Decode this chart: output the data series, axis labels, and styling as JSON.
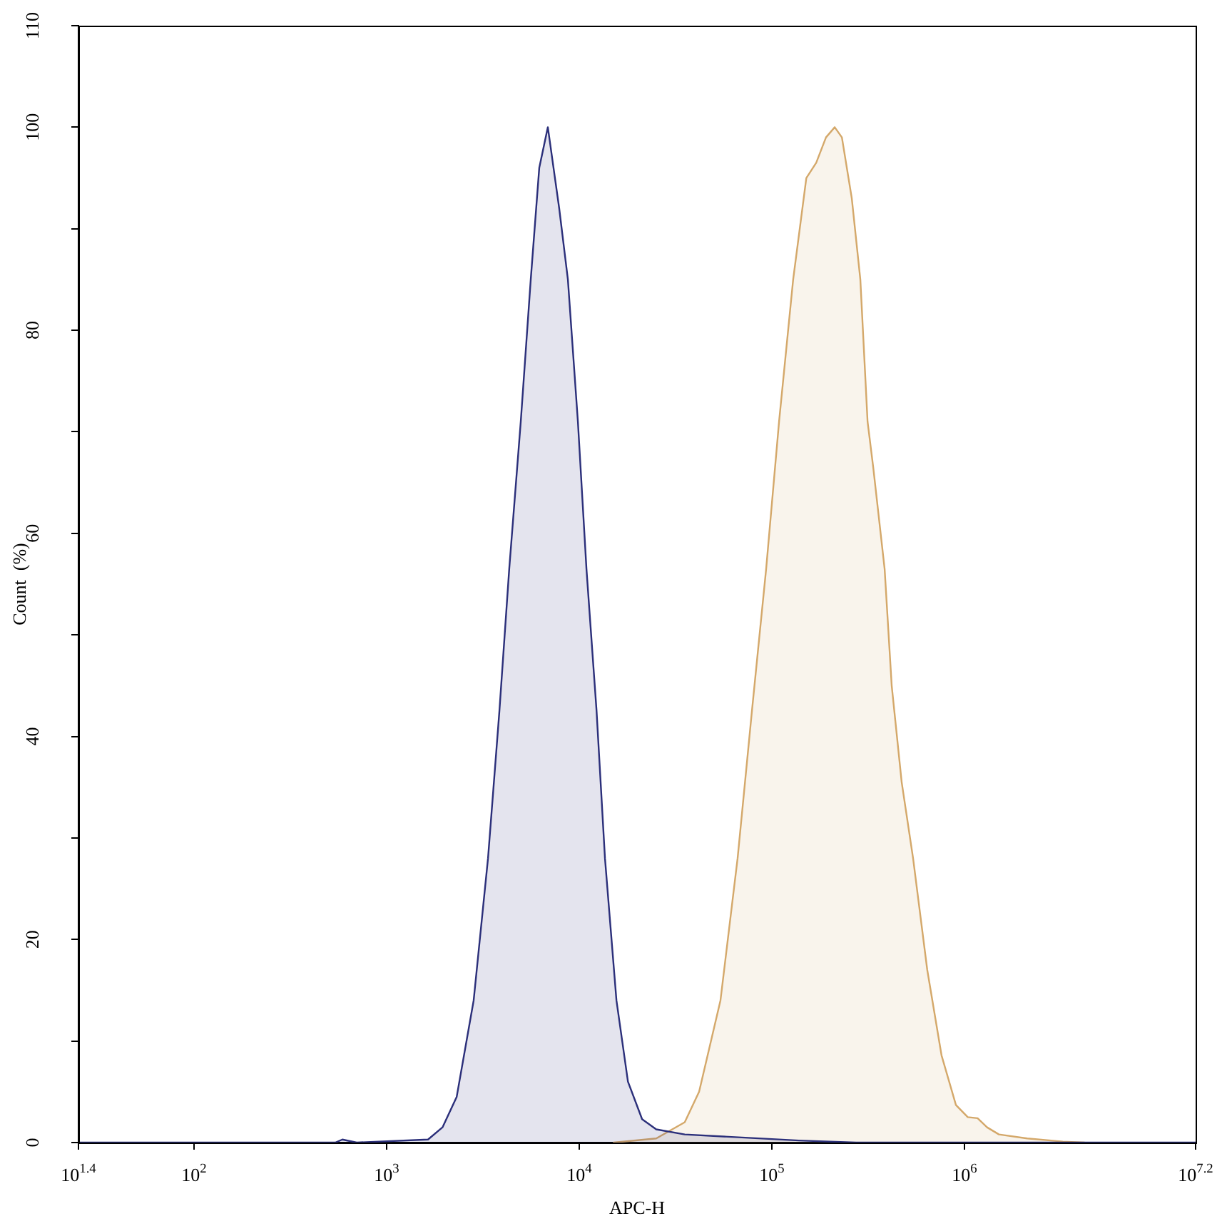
{
  "chart_data": {
    "type": "area",
    "xlabel": "APC-H",
    "ylabel": "Count  (%)",
    "log": "x",
    "marker": "none",
    "legend": false,
    "xlim": [
      25.12,
      15848932
    ],
    "xticks": [
      {
        "value": 25.12,
        "label": "10$^{1.4}$"
      },
      {
        "value": 100,
        "label": "10$^{2}$"
      },
      {
        "value": 1000,
        "label": "10$^{3}$"
      },
      {
        "value": 10000,
        "label": "10$^{4}$"
      },
      {
        "value": 100000,
        "label": "10$^{5}$"
      },
      {
        "value": 1000000,
        "label": "10$^{6}$"
      },
      {
        "value": 15848932,
        "label": "10$^{7.2}$"
      }
    ],
    "ylim": [
      0,
      110
    ],
    "yticks": [
      0,
      {
        "value": 10,
        "label": null
      },
      20,
      {
        "value": 30,
        "label": null
      },
      40,
      {
        "value": 50,
        "label": null
      },
      60,
      {
        "value": 70,
        "label": null
      },
      80,
      {
        "value": 90,
        "label": null
      },
      100,
      110
    ],
    "series": [
      {
        "color": "#2b2f7a",
        "x": [
          25.12,
          541,
          589,
          699,
          1640,
          1950,
          2310,
          2830,
          3360,
          3850,
          4330,
          4970,
          5600,
          6200,
          6870,
          7870,
          8730,
          9840,
          10900,
          12300,
          13600,
          15600,
          17900,
          21200,
          25100,
          35300,
          69800,
          138000,
          274000,
          15848932
        ],
        "values": [
          0,
          0,
          0.3,
          0,
          0.3,
          1.5,
          4.5,
          14,
          28,
          42.5,
          56.5,
          71,
          85,
          96,
          100,
          92,
          85,
          71,
          56.5,
          42.5,
          28,
          14,
          6,
          2.3,
          1.3,
          0.8,
          0.5,
          0.2,
          0,
          0
        ]
      },
      {
        "color": "#d4a86a",
        "x": [
          15100,
          25100,
          35300,
          41900,
          54100,
          66400,
          78800,
          93400,
          109000,
          129000,
          151000,
          170000,
          191000,
          212000,
          231000,
          260000,
          288000,
          314000,
          336000,
          385000,
          419000,
          472000,
          541000,
          641000,
          760000,
          903000,
          1040000,
          1170000,
          1310000,
          1510000,
          2120000,
          3240000,
          4190000
        ],
        "values": [
          0,
          0.4,
          2,
          5,
          14,
          28,
          42.5,
          56.5,
          71,
          85,
          95,
          96.5,
          99,
          100,
          99,
          93,
          85,
          71,
          66.5,
          56.5,
          45,
          35.5,
          28,
          17,
          8.6,
          3.7,
          2.5,
          2.4,
          1.5,
          0.8,
          0.4,
          0.1,
          0
        ]
      }
    ]
  }
}
